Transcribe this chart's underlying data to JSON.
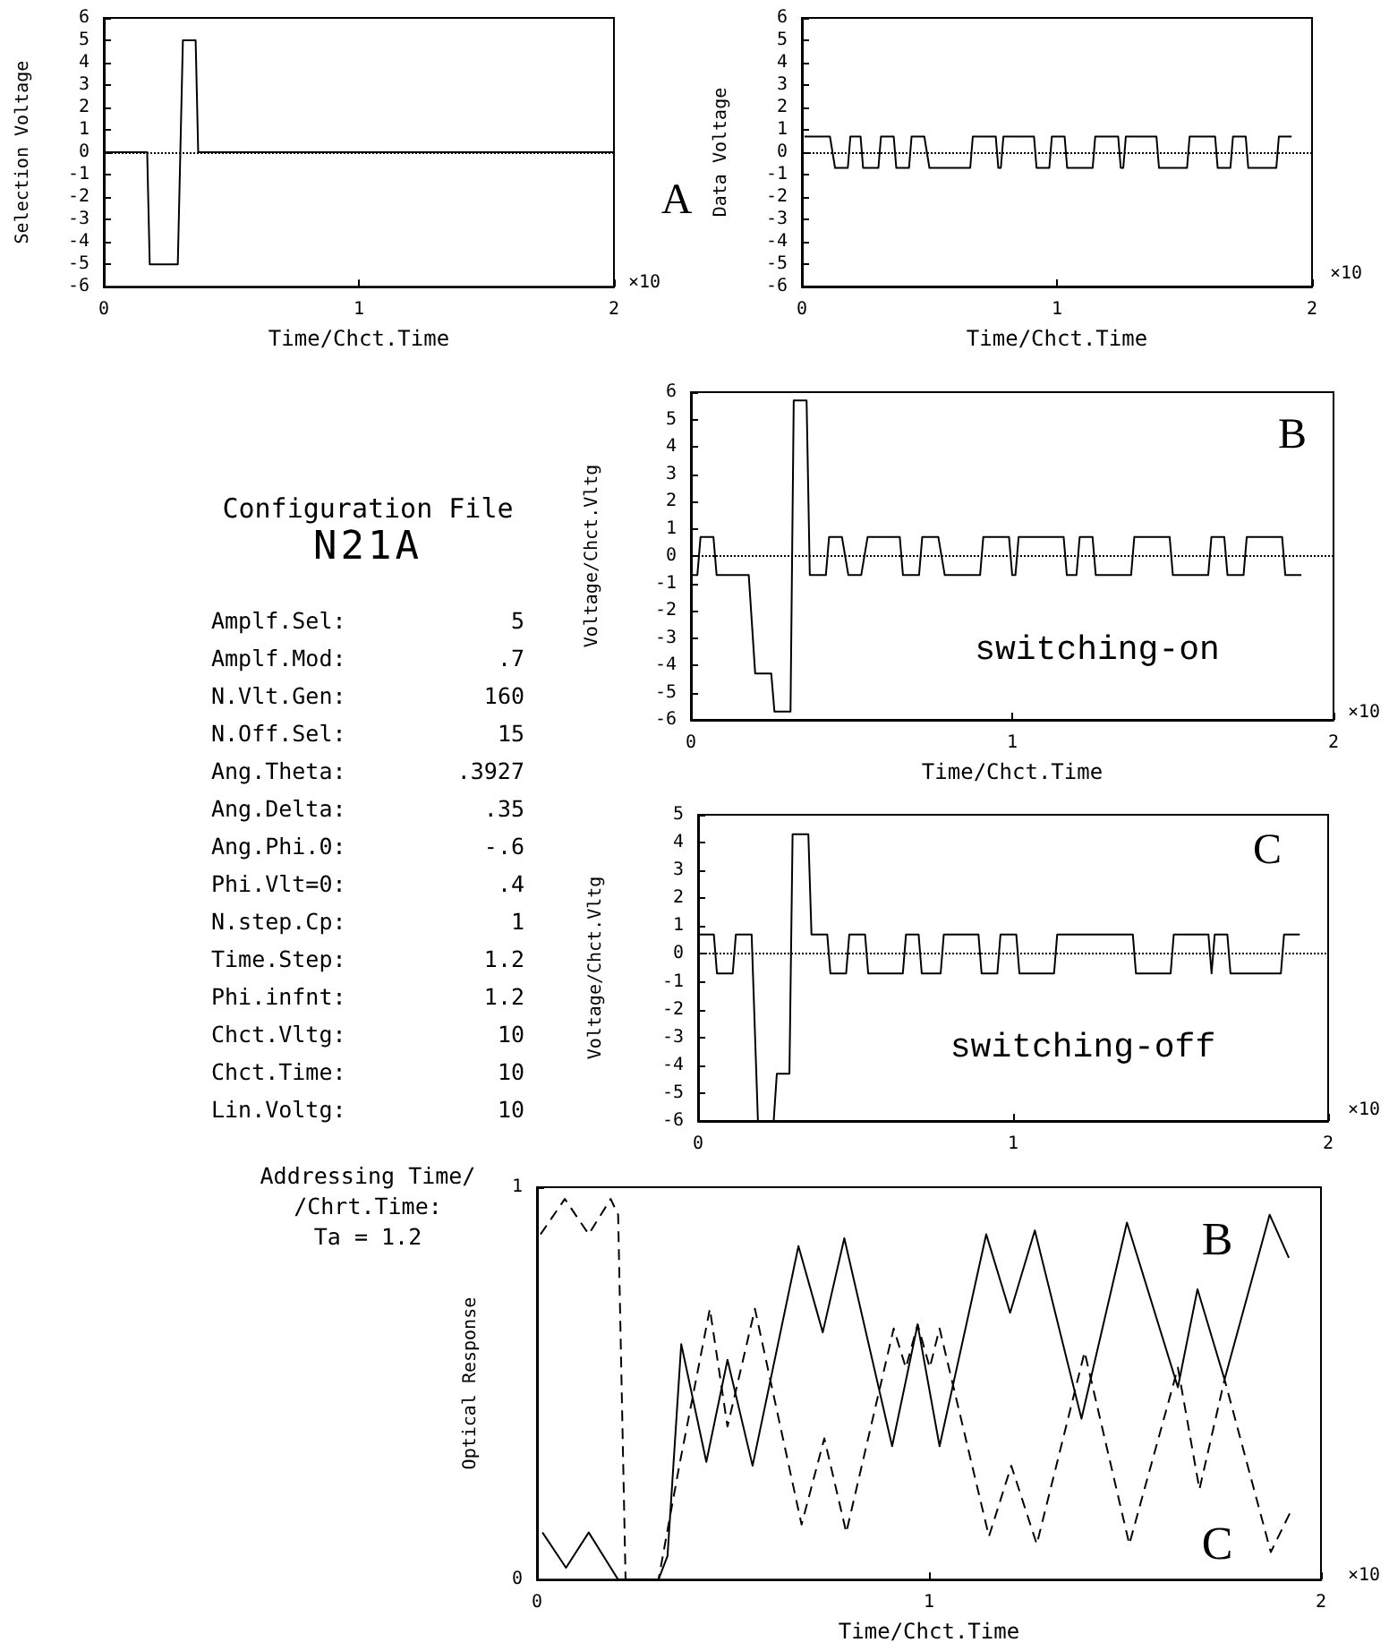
{
  "chart_data": [
    {
      "type": "line",
      "xlabel": "Time/Chct.Time",
      "ylabel": "Selection Voltage",
      "xlim": [
        0,
        2
      ],
      "xticks": [
        0,
        1,
        2
      ],
      "ylim": [
        -6,
        6
      ],
      "yticks": [
        -6,
        -5,
        -4,
        -3,
        -2,
        -1,
        0,
        1,
        2,
        3,
        4,
        5,
        6
      ],
      "annotations": [
        "A",
        "×10"
      ],
      "ref_lines": [
        {
          "axis": "y",
          "value": 0,
          "line_style": "dotted"
        }
      ],
      "series": [
        {
          "color": "#000000",
          "x": [
            0,
            0.17,
            0.18,
            0.29,
            0.31,
            0.36,
            0.37,
            2
          ],
          "values": [
            0,
            0,
            -5,
            -5,
            5,
            5,
            0,
            0
          ]
        }
      ]
    },
    {
      "type": "line",
      "xlabel": "Time/Chct.Time",
      "ylabel": "Data Voltage",
      "xlim": [
        0,
        2
      ],
      "xticks": [
        0,
        1,
        2
      ],
      "ylim": [
        -6,
        6
      ],
      "yticks": [
        -6,
        -5,
        -4,
        -3,
        -2,
        -1,
        0,
        1,
        2,
        3,
        4,
        5,
        6
      ],
      "annotations": [
        "×10"
      ],
      "ref_lines": [
        {
          "axis": "y",
          "value": 0,
          "line_style": "dotted"
        }
      ],
      "series": [
        {
          "color": "#000000",
          "x": [
            0.01,
            0.11,
            0.13,
            0.18,
            0.19,
            0.23,
            0.24,
            0.3,
            0.31,
            0.36,
            0.37,
            0.42,
            0.43,
            0.48,
            0.5,
            0.66,
            0.67,
            0.76,
            0.77,
            0.78,
            0.79,
            0.91,
            0.92,
            0.97,
            0.98,
            1.03,
            1.04,
            1.14,
            1.15,
            1.24,
            1.25,
            1.26,
            1.27,
            1.39,
            1.4,
            1.51,
            1.52,
            1.62,
            1.63,
            1.68,
            1.69,
            1.74,
            1.75,
            1.86,
            1.87,
            1.92
          ],
          "values": [
            0.7,
            0.7,
            -0.7,
            -0.7,
            0.7,
            0.7,
            -0.7,
            -0.7,
            0.7,
            0.7,
            -0.7,
            -0.7,
            0.7,
            0.7,
            -0.7,
            -0.7,
            0.7,
            0.7,
            -0.7,
            -0.7,
            0.7,
            0.7,
            -0.7,
            -0.7,
            0.7,
            0.7,
            -0.7,
            -0.7,
            0.7,
            0.7,
            -0.7,
            -0.7,
            0.7,
            0.7,
            -0.7,
            -0.7,
            0.7,
            0.7,
            -0.7,
            -0.7,
            0.7,
            0.7,
            -0.7,
            -0.7,
            0.7,
            0.7
          ]
        }
      ]
    },
    {
      "type": "other",
      "title": "Configuration File",
      "subtitle": "N21A",
      "annotations": [
        "Amplf.Sel:\t5",
        "Amplf.Mod:\t.7",
        "N.Vlt.Gen:\t160",
        "N.Off.Sel:\t15",
        "Ang.Theta:\t.3927",
        "Ang.Delta:\t.35",
        "Ang.Phi.0:\t-.6",
        "Phi.Vlt=0:\t.4",
        "N.step.Cp:\t1",
        "Time.Step:\t1.2",
        "Phi.infnt:\t1.2",
        "Chct.Vltg:\t10",
        "Chct.Time:\t10",
        "Lin.Voltg:\t10",
        "Addressing Time/\n/Chrt.Time:\nTa = 1.2"
      ]
    },
    {
      "type": "line",
      "xlabel": "Time/Chct.Time",
      "ylabel": "Voltage/Chct.Vltg",
      "xlim": [
        0,
        2
      ],
      "xticks": [
        0,
        1,
        2
      ],
      "ylim": [
        -6,
        6
      ],
      "yticks": [
        -6,
        -5,
        -4,
        -3,
        -2,
        -1,
        0,
        1,
        2,
        3,
        4,
        5,
        6
      ],
      "annotations": [
        "B",
        "switching-on",
        "×10"
      ],
      "ref_lines": [
        {
          "axis": "y",
          "value": 0,
          "line_style": "dotted"
        }
      ],
      "series": [
        {
          "color": "#000000",
          "x": [
            0,
            0.02,
            0.03,
            0.07,
            0.08,
            0.18,
            0.2,
            0.25,
            0.26,
            0.31,
            0.32,
            0.36,
            0.37,
            0.42,
            0.43,
            0.47,
            0.49,
            0.53,
            0.55,
            0.65,
            0.66,
            0.71,
            0.72,
            0.77,
            0.79,
            0.9,
            0.91,
            0.99,
            1.0,
            1.01,
            1.02,
            1.16,
            1.17,
            1.2,
            1.21,
            1.25,
            1.26,
            1.37,
            1.38,
            1.49,
            1.5,
            1.61,
            1.62,
            1.66,
            1.67,
            1.72,
            1.73,
            1.84,
            1.85,
            1.9
          ],
          "values": [
            -0.7,
            -0.7,
            0.7,
            0.7,
            -0.7,
            -0.7,
            -4.3,
            -4.3,
            -5.7,
            -5.7,
            5.7,
            5.7,
            -0.7,
            -0.7,
            0.7,
            0.7,
            -0.7,
            -0.7,
            0.7,
            0.7,
            -0.7,
            -0.7,
            0.7,
            0.7,
            -0.7,
            -0.7,
            0.7,
            0.7,
            -0.7,
            -0.7,
            0.7,
            0.7,
            -0.7,
            -0.7,
            0.7,
            0.7,
            -0.7,
            -0.7,
            0.7,
            0.7,
            -0.7,
            -0.7,
            0.7,
            0.7,
            -0.7,
            -0.7,
            0.7,
            0.7,
            -0.7,
            -0.7
          ]
        }
      ]
    },
    {
      "type": "line",
      "ylabel": "Voltage/Chct.Vltg",
      "xlim": [
        0,
        2
      ],
      "xticks": [
        0,
        1,
        2
      ],
      "ylim": [
        -6,
        5
      ],
      "yticks": [
        -6,
        -5,
        -4,
        -3,
        -2,
        -1,
        0,
        1,
        2,
        3,
        4,
        5
      ],
      "annotations": [
        "C",
        "switching-off",
        "×10"
      ],
      "ref_lines": [
        {
          "axis": "y",
          "value": 0,
          "line_style": "dotted"
        }
      ],
      "series": [
        {
          "color": "#000000",
          "x": [
            0,
            0.05,
            0.06,
            0.11,
            0.12,
            0.17,
            0.19,
            0.24,
            0.25,
            0.29,
            0.3,
            0.35,
            0.36,
            0.41,
            0.42,
            0.47,
            0.48,
            0.53,
            0.54,
            0.65,
            0.66,
            0.7,
            0.71,
            0.77,
            0.78,
            0.89,
            0.9,
            0.95,
            0.96,
            1.01,
            1.02,
            1.13,
            1.14,
            1.38,
            1.39,
            1.5,
            1.51,
            1.62,
            1.63,
            1.64,
            1.68,
            1.69,
            1.85,
            1.86,
            1.91
          ],
          "values": [
            0.7,
            0.7,
            -0.7,
            -0.7,
            0.7,
            0.7,
            -6,
            -6,
            -4.3,
            -4.3,
            4.3,
            4.3,
            0.7,
            0.7,
            -0.7,
            -0.7,
            0.7,
            0.7,
            -0.7,
            -0.7,
            0.7,
            0.7,
            -0.7,
            -0.7,
            0.7,
            0.7,
            -0.7,
            -0.7,
            0.7,
            0.7,
            -0.7,
            -0.7,
            0.7,
            0.7,
            -0.7,
            -0.7,
            0.7,
            0.7,
            -0.7,
            0.7,
            0.7,
            -0.7,
            -0.7,
            0.7,
            0.7
          ]
        }
      ]
    },
    {
      "type": "line",
      "xlabel": "Time/Chct.Time",
      "ylabel": "Optical Response",
      "xlim": [
        0,
        2
      ],
      "xticks": [
        0,
        1,
        2
      ],
      "ylim": [
        0,
        1
      ],
      "yticks": [
        0,
        1
      ],
      "annotations": [
        "×10"
      ],
      "series": [
        {
          "name": "B",
          "color": "#000000",
          "line_style": "solid",
          "x": [
            0.014,
            0.074,
            0.132,
            0.207,
            0.31,
            0.333,
            0.368,
            0.432,
            0.486,
            0.55,
            0.667,
            0.729,
            0.784,
            0.906,
            0.971,
            1.027,
            1.146,
            1.207,
            1.27,
            1.389,
            1.505,
            1.635,
            1.685,
            1.754,
            1.869,
            1.918
          ],
          "values": [
            0.12,
            0.03,
            0.12,
            0,
            0,
            0.06,
            0.6,
            0.3,
            0.56,
            0.29,
            0.85,
            0.63,
            0.87,
            0.34,
            0.65,
            0.34,
            0.88,
            0.68,
            0.89,
            0.41,
            0.91,
            0.49,
            0.74,
            0.51,
            0.93,
            0.82
          ]
        },
        {
          "name": "C",
          "color": "#000000",
          "line_style": "dashed",
          "x": [
            0.009,
            0.071,
            0.132,
            0.188,
            0.207,
            0.226,
            0.31,
            0.363,
            0.441,
            0.486,
            0.556,
            0.675,
            0.733,
            0.789,
            0.91,
            0.941,
            0.971,
            1.002,
            1.027,
            1.153,
            1.21,
            1.275,
            1.397,
            1.511,
            1.635,
            1.69,
            1.754,
            1.872,
            1.921
          ],
          "values": [
            0.88,
            0.97,
            0.88,
            0.97,
            0.93,
            0,
            0,
            0.29,
            0.69,
            0.39,
            0.69,
            0.14,
            0.36,
            0.12,
            0.64,
            0.54,
            0.65,
            0.54,
            0.64,
            0.11,
            0.29,
            0.09,
            0.58,
            0.09,
            0.54,
            0.23,
            0.51,
            0.07,
            0.17
          ]
        }
      ]
    }
  ]
}
